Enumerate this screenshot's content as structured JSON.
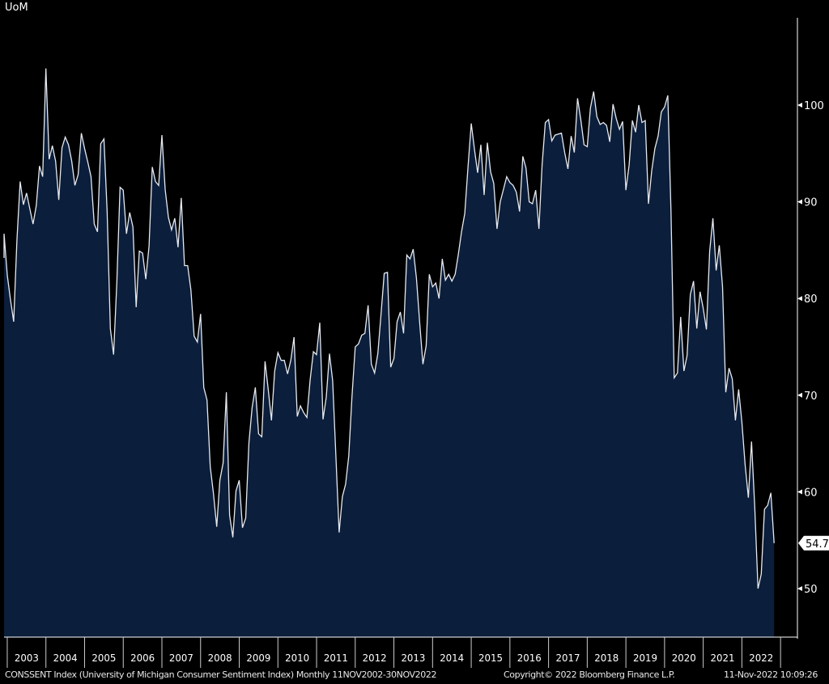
{
  "chart_data": {
    "type": "area",
    "title": "CONSSENT Index (University of Michigan Consumer Sentiment Index) Monthly 11NOV2002-30NOV2022",
    "ylabel": "UoM",
    "xlabel": "",
    "start": "2002-11",
    "frequency": "monthly",
    "ylim": [
      45,
      109
    ],
    "yticks": [
      "50",
      "60",
      "70",
      "80",
      "90",
      "100"
    ],
    "xticks": [
      "2003",
      "2004",
      "2005",
      "2006",
      "2007",
      "2008",
      "2009",
      "2010",
      "2011",
      "2012",
      "2013",
      "2014",
      "2015",
      "2016",
      "2017",
      "2018",
      "2019",
      "2020",
      "2021",
      "2022"
    ],
    "last_value_label": "54.7",
    "colors": {
      "fill": "#0b1e3b",
      "line": "#e6e9ef",
      "background": "#000000"
    },
    "values": [
      84.2,
      86.7,
      82.4,
      79.9,
      77.6,
      86.0,
      92.1,
      89.7,
      90.9,
      89.3,
      87.7,
      89.6,
      93.7,
      92.6,
      103.8,
      94.4,
      95.8,
      94.2,
      90.2,
      95.6,
      96.7,
      95.9,
      94.2,
      91.7,
      92.8,
      97.1,
      95.5,
      94.1,
      92.6,
      87.7,
      86.9,
      96.0,
      96.5,
      89.1,
      76.9,
      74.2,
      81.6,
      91.5,
      91.2,
      86.7,
      88.9,
      87.4,
      79.1,
      84.9,
      84.7,
      82.0,
      85.4,
      93.6,
      92.1,
      91.7,
      96.9,
      91.3,
      88.4,
      87.1,
      88.3,
      85.3,
      90.4,
      83.4,
      83.4,
      80.9,
      76.1,
      75.5,
      78.4,
      70.8,
      69.5,
      62.6,
      59.8,
      56.4,
      61.2,
      63.0,
      70.3,
      57.6,
      55.3,
      60.1,
      61.2,
      56.3,
      57.3,
      65.1,
      68.7,
      70.8,
      66.0,
      65.7,
      73.5,
      70.6,
      67.4,
      72.5,
      74.4,
      73.6,
      73.6,
      72.2,
      73.6,
      76.0,
      67.8,
      68.9,
      68.2,
      67.7,
      71.6,
      74.5,
      74.2,
      77.5,
      67.5,
      69.8,
      74.3,
      71.5,
      63.7,
      55.8,
      59.5,
      60.8,
      63.7,
      69.9,
      75.0,
      75.3,
      76.2,
      76.4,
      79.3,
      73.2,
      72.3,
      74.3,
      78.3,
      82.6,
      82.7,
      72.9,
      73.8,
      77.6,
      78.6,
      76.4,
      84.5,
      84.1,
      85.1,
      82.1,
      77.5,
      73.2,
      75.1,
      82.5,
      81.2,
      81.6,
      80.0,
      84.1,
      81.9,
      82.5,
      81.8,
      82.5,
      84.6,
      86.9,
      88.8,
      93.6,
      98.1,
      95.4,
      93.0,
      95.9,
      90.7,
      96.1,
      93.1,
      91.9,
      87.2,
      90.0,
      91.3,
      92.6,
      92.0,
      91.7,
      91.0,
      89.0,
      94.7,
      93.5,
      90.0,
      89.8,
      91.2,
      87.2,
      93.8,
      98.2,
      98.5,
      96.3,
      96.9,
      97.0,
      97.1,
      95.1,
      93.4,
      96.8,
      95.1,
      100.7,
      98.5,
      95.9,
      95.7,
      99.7,
      101.4,
      98.8,
      98.0,
      98.2,
      97.9,
      96.2,
      100.1,
      98.6,
      97.5,
      98.3,
      91.2,
      93.8,
      98.4,
      97.2,
      100.0,
      98.2,
      98.4,
      89.8,
      93.2,
      95.5,
      96.8,
      99.3,
      99.8,
      101.0,
      89.1,
      71.8,
      72.3,
      78.1,
      72.5,
      74.1,
      80.4,
      81.8,
      76.9,
      80.7,
      79.0,
      76.8,
      84.9,
      88.3,
      82.9,
      85.5,
      81.2,
      70.3,
      72.8,
      71.7,
      67.4,
      70.6,
      67.2,
      62.8,
      59.4,
      65.2,
      58.4,
      50.0,
      51.5,
      58.2,
      58.6,
      59.9,
      54.7
    ]
  },
  "footer": {
    "description": "CONSSENT Index (University of Michigan Consumer Sentiment Index)  Monthly 11NOV2002-30NOV2022",
    "copyright": "Copyright© 2022 Bloomberg Finance L.P.",
    "timestamp": "11-Nov-2022 10:09:26"
  }
}
